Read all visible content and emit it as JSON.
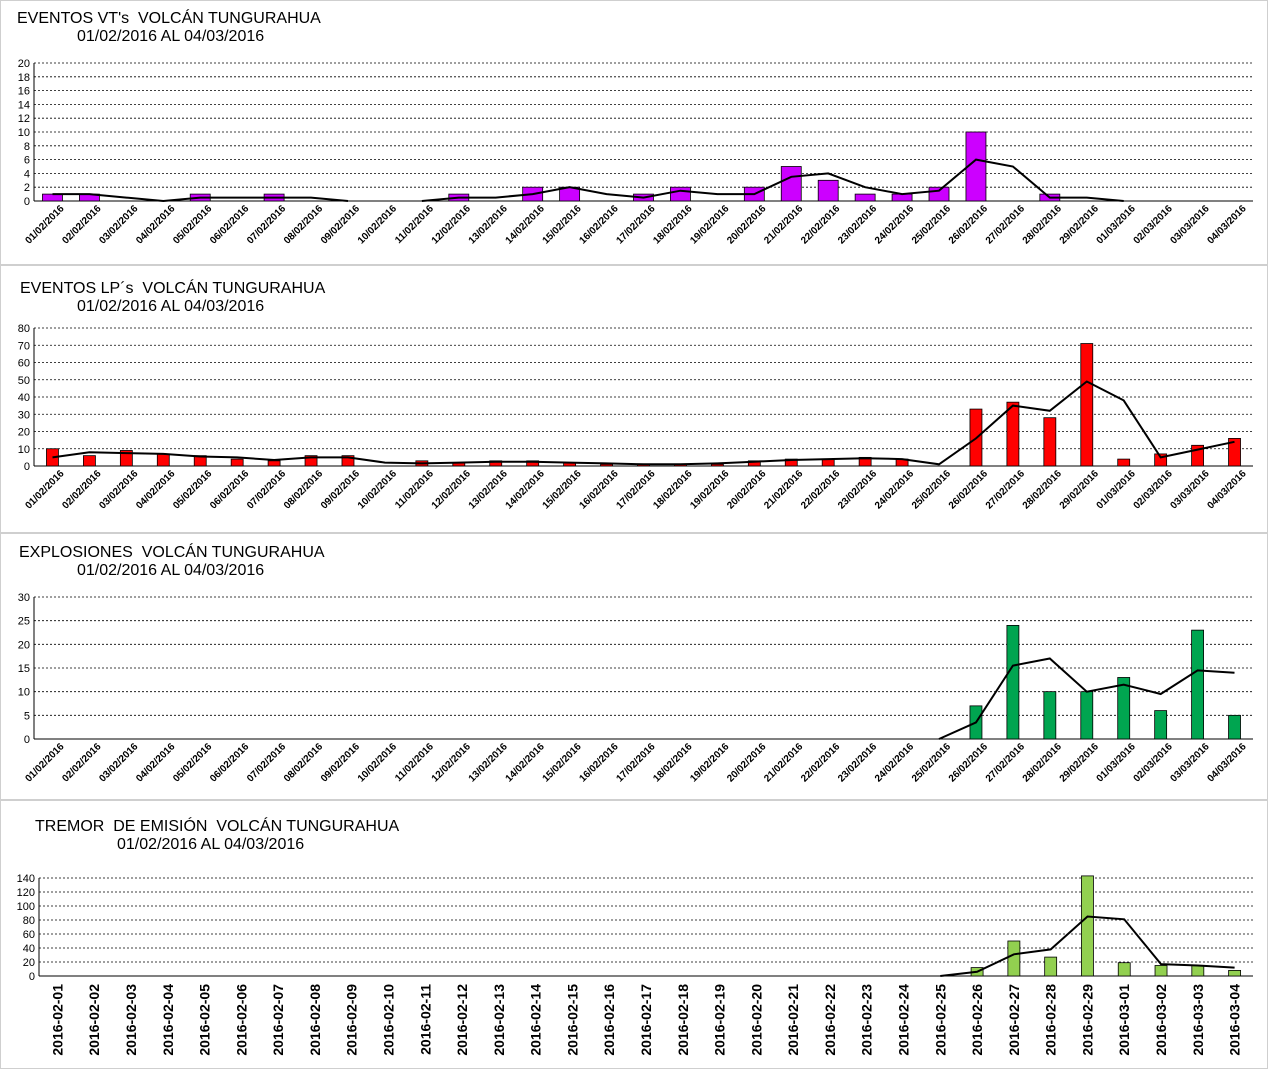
{
  "chart_data": [
    {
      "type": "bar",
      "title": "EVENTOS VT's  VOLCÁN TUNGURAHUA",
      "subtitle": "01/02/2016 AL 04/03/2016",
      "categories": [
        "01/02/2016",
        "02/02/2016",
        "03/02/2016",
        "04/02/2016",
        "05/02/2016",
        "06/02/2016",
        "07/02/2016",
        "08/02/2016",
        "09/02/2016",
        "10/02/2016",
        "11/02/2016",
        "12/02/2016",
        "13/02/2016",
        "14/02/2016",
        "15/02/2016",
        "16/02/2016",
        "17/02/2016",
        "18/02/2016",
        "19/02/2016",
        "20/02/2016",
        "21/02/2016",
        "22/02/2016",
        "23/02/2016",
        "24/02/2016",
        "25/02/2016",
        "26/02/2016",
        "27/02/2016",
        "28/02/2016",
        "29/02/2016",
        "01/03/2016",
        "02/03/2016",
        "03/03/2016",
        "04/03/2016"
      ],
      "series": [
        {
          "kind": "bar",
          "values": [
            1,
            1,
            0,
            0,
            1,
            0,
            1,
            0,
            0,
            0,
            0,
            1,
            0,
            2,
            2,
            0,
            1,
            2,
            0,
            2,
            5,
            3,
            1,
            1,
            2,
            10,
            0,
            1,
            0,
            0,
            0,
            0,
            0
          ]
        },
        {
          "kind": "line",
          "values": [
            1,
            1,
            0.5,
            0,
            0.5,
            0.5,
            0.5,
            0.5,
            0,
            null,
            0,
            0.5,
            0.5,
            1,
            2,
            1,
            0.5,
            1.5,
            1,
            1,
            3.5,
            4,
            2,
            1,
            1.5,
            6,
            5,
            0.5,
            0.5,
            0,
            null,
            null,
            null
          ]
        }
      ],
      "ylim": [
        0,
        20
      ],
      "yticks": [
        0,
        2,
        4,
        6,
        8,
        10,
        12,
        14,
        16,
        18,
        20
      ],
      "bar_color": "#cc00ff",
      "line_color": "#000000",
      "grid": true
    },
    {
      "type": "bar",
      "title": "EVENTOS LP´s  VOLCÁN TUNGURAHUA",
      "subtitle": "01/02/2016 AL 04/03/2016",
      "categories": [
        "01/02/2016",
        "02/02/2016",
        "03/02/2016",
        "04/02/2016",
        "05/02/2016",
        "06/02/2016",
        "07/02/2016",
        "08/02/2016",
        "09/02/2016",
        "10/02/2016",
        "11/02/2016",
        "12/02/2016",
        "13/02/2016",
        "14/02/2016",
        "15/02/2016",
        "16/02/2016",
        "17/02/2016",
        "18/02/2016",
        "19/02/2016",
        "20/02/2016",
        "21/02/2016",
        "22/02/2016",
        "23/02/2016",
        "24/02/2016",
        "25/02/2016",
        "26/02/2016",
        "27/02/2016",
        "28/02/2016",
        "29/02/2016",
        "01/03/2016",
        "02/03/2016",
        "03/03/2016",
        "04/03/2016"
      ],
      "series": [
        {
          "kind": "bar",
          "values": [
            10,
            6,
            9,
            7,
            6,
            4,
            3,
            6,
            6,
            0,
            3,
            2,
            3,
            3,
            2,
            1,
            1,
            1,
            1,
            3,
            4,
            4,
            5,
            4,
            0,
            33,
            37,
            28,
            71,
            4,
            7,
            12,
            16
          ]
        },
        {
          "kind": "line",
          "values": [
            5,
            8,
            7.5,
            7,
            5.5,
            5,
            3.5,
            5,
            5,
            2,
            1.5,
            2,
            2.5,
            2.5,
            2,
            1.5,
            1,
            1,
            1.5,
            2.5,
            3.5,
            4,
            4.5,
            4,
            1,
            16,
            35,
            32,
            49,
            38,
            5,
            9.5,
            14
          ]
        }
      ],
      "ylim": [
        0,
        80
      ],
      "yticks": [
        0,
        10,
        20,
        30,
        40,
        50,
        60,
        70,
        80
      ],
      "bar_color": "#ff0000",
      "line_color": "#000000",
      "grid": true
    },
    {
      "type": "bar",
      "title": "EXPLOSIONES  VOLCÁN TUNGURAHUA",
      "subtitle": "01/02/2016 AL 04/03/2016",
      "categories": [
        "01/02/2016",
        "02/02/2016",
        "03/02/2016",
        "04/02/2016",
        "05/02/2016",
        "06/02/2016",
        "07/02/2016",
        "08/02/2016",
        "09/02/2016",
        "10/02/2016",
        "11/02/2016",
        "12/02/2016",
        "13/02/2016",
        "14/02/2016",
        "15/02/2016",
        "16/02/2016",
        "17/02/2016",
        "18/02/2016",
        "19/02/2016",
        "20/02/2016",
        "21/02/2016",
        "22/02/2016",
        "23/02/2016",
        "24/02/2016",
        "25/02/2016",
        "26/02/2016",
        "27/02/2016",
        "28/02/2016",
        "29/02/2016",
        "01/03/2016",
        "02/03/2016",
        "03/03/2016",
        "04/03/2016"
      ],
      "series": [
        {
          "kind": "bar",
          "values": [
            0,
            0,
            0,
            0,
            0,
            0,
            0,
            0,
            0,
            0,
            0,
            0,
            0,
            0,
            0,
            0,
            0,
            0,
            0,
            0,
            0,
            0,
            0,
            0,
            0,
            7,
            24,
            10,
            10,
            13,
            6,
            23,
            5
          ]
        },
        {
          "kind": "line",
          "values": [
            null,
            null,
            null,
            null,
            null,
            null,
            null,
            null,
            null,
            null,
            null,
            null,
            null,
            null,
            null,
            null,
            null,
            null,
            null,
            null,
            null,
            null,
            null,
            null,
            0,
            3.5,
            15.5,
            17,
            10,
            11.5,
            9.5,
            14.5,
            14
          ]
        }
      ],
      "ylim": [
        0,
        30
      ],
      "yticks": [
        0,
        5,
        10,
        15,
        20,
        25,
        30
      ],
      "bar_color": "#00a550",
      "line_color": "#000000",
      "grid": true
    },
    {
      "type": "bar",
      "title": "TREMOR  DE EMISIÓN  VOLCÁN TUNGURAHUA",
      "subtitle": "01/02/2016 AL 04/03/2016",
      "categories": [
        "2016-02-01",
        "2016-02-02",
        "2016-02-03",
        "2016-02-04",
        "2016-02-05",
        "2016-02-06",
        "2016-02-07",
        "2016-02-08",
        "2016-02-09",
        "2016-02-10",
        "2016-02-11",
        "2016-02-12",
        "2016-02-13",
        "2016-02-14",
        "2016-02-15",
        "2016-02-16",
        "2016-02-17",
        "2016-02-18",
        "2016-02-19",
        "2016-02-20",
        "2016-02-21",
        "2016-02-22",
        "2016-02-23",
        "2016-02-24",
        "2016-02-25",
        "2016-02-26",
        "2016-02-27",
        "2016-02-28",
        "2016-02-29",
        "2016-03-01",
        "2016-03-02",
        "2016-03-03",
        "2016-03-04"
      ],
      "series": [
        {
          "kind": "bar",
          "values": [
            0,
            0,
            0,
            0,
            0,
            0,
            0,
            0,
            0,
            0,
            0,
            0,
            0,
            0,
            0,
            0,
            0,
            0,
            0,
            0,
            0,
            0,
            0,
            0,
            0,
            12,
            50,
            27,
            143,
            19,
            15,
            15,
            8
          ]
        },
        {
          "kind": "line",
          "values": [
            null,
            null,
            null,
            null,
            null,
            null,
            null,
            null,
            null,
            null,
            null,
            null,
            null,
            null,
            null,
            null,
            null,
            null,
            null,
            null,
            null,
            null,
            null,
            null,
            0,
            6,
            31,
            38,
            85,
            81,
            17,
            15,
            12
          ]
        }
      ],
      "ylim": [
        0,
        150
      ],
      "yticks": [
        0,
        20,
        40,
        60,
        80,
        100,
        120,
        140
      ],
      "bar_color": "#92d050",
      "line_color": "#000000",
      "grid": true
    }
  ]
}
